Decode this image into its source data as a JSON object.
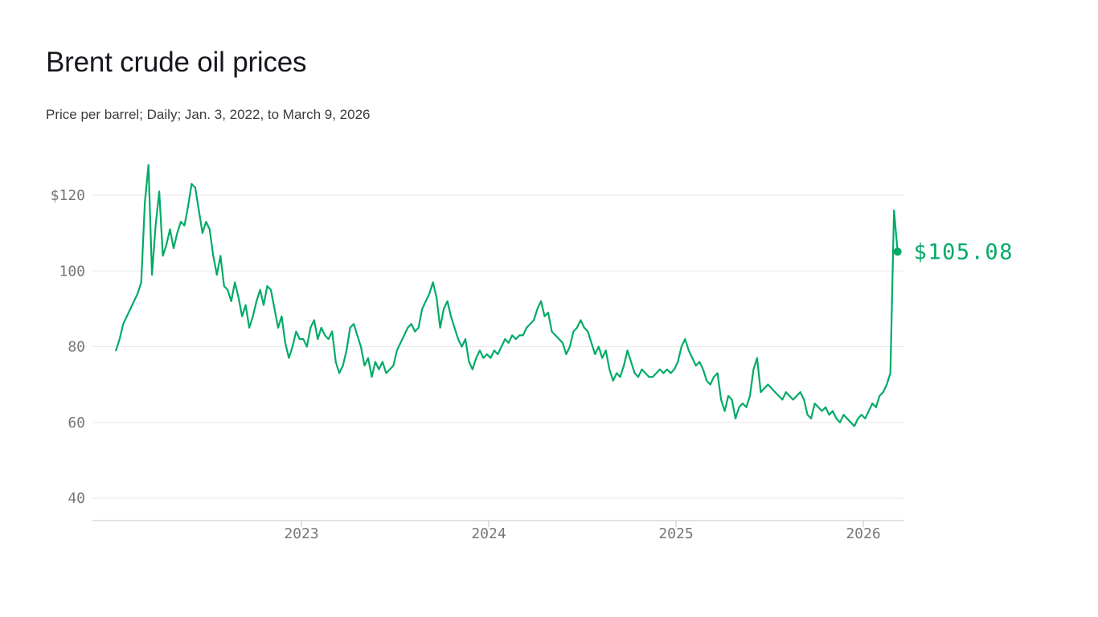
{
  "header": {
    "title": "Brent crude oil prices",
    "subtitle": "Price per barrel; Daily; Jan. 3, 2022, to March 9, 2026"
  },
  "chart_data": {
    "type": "line",
    "title": "Brent crude oil prices",
    "subtitle": "Price per barrel; Daily; Jan. 3, 2022, to March 9, 2026",
    "unit": "USD per barrel",
    "line_color": "#00ab66",
    "grid_color": "#e8e8e8",
    "axis_color": "#c6c6c6",
    "tick_label_color": "#767676",
    "legend_position": "none",
    "grid": true,
    "ylim": [
      40,
      130
    ],
    "xlim": [
      2022.0,
      2026.25
    ],
    "ylabel": "",
    "xlabel": "",
    "y_ticks": [
      {
        "value": 120,
        "label": "$120"
      },
      {
        "value": 100,
        "label": "100"
      },
      {
        "value": 80,
        "label": "80"
      },
      {
        "value": 60,
        "label": "60"
      },
      {
        "value": 40,
        "label": "40"
      }
    ],
    "x_ticks": [
      {
        "value": 2023,
        "label": "2023"
      },
      {
        "value": 2024,
        "label": "2024"
      },
      {
        "value": 2025,
        "label": "2025"
      },
      {
        "value": 2026,
        "label": "2026"
      }
    ],
    "end_label": "$105.08",
    "end_value": 105.08,
    "series": [
      {
        "name": "Brent crude price",
        "start": 2022.01,
        "step": 0.019231,
        "values": [
          79,
          82,
          86,
          88,
          90,
          92,
          94,
          97,
          118,
          128,
          99,
          112,
          121,
          104,
          107,
          111,
          106,
          110,
          113,
          112,
          117,
          123,
          122,
          116,
          110,
          113,
          111,
          104,
          99,
          104,
          96,
          95,
          92,
          97,
          93,
          88,
          91,
          85,
          88,
          92,
          95,
          91,
          96,
          95,
          90,
          85,
          88,
          81,
          77,
          80,
          84,
          82,
          82,
          80,
          85,
          87,
          82,
          85,
          83,
          82,
          84,
          76,
          73,
          75,
          79,
          85,
          86,
          83,
          80,
          75,
          77,
          72,
          76,
          74,
          76,
          73,
          74,
          75,
          79,
          81,
          83,
          85,
          86,
          84,
          85,
          90,
          92,
          94,
          97,
          93,
          85,
          90,
          92,
          88,
          85,
          82,
          80,
          82,
          76,
          74,
          77,
          79,
          77,
          78,
          77,
          79,
          78,
          80,
          82,
          81,
          83,
          82,
          83,
          83,
          85,
          86,
          87,
          90,
          92,
          88,
          89,
          84,
          83,
          82,
          81,
          78,
          80,
          84,
          85,
          87,
          85,
          84,
          81,
          78,
          80,
          77,
          79,
          74,
          71,
          73,
          72,
          75,
          79,
          76,
          73,
          72,
          74,
          73,
          72,
          72,
          73,
          74,
          73,
          74,
          73,
          74,
          76,
          80,
          82,
          79,
          77,
          75,
          76,
          74,
          71,
          70,
          72,
          73,
          66,
          63,
          67,
          66,
          61,
          64,
          65,
          64,
          67,
          74,
          77,
          68,
          69,
          70,
          69,
          68,
          67,
          66,
          68,
          67,
          66,
          67,
          68,
          66,
          62,
          61,
          65,
          64,
          63,
          64,
          62,
          63,
          61,
          60,
          62,
          61,
          60,
          59,
          61,
          62,
          61,
          63,
          65,
          64,
          67,
          68,
          70,
          73,
          116,
          105.08
        ]
      }
    ]
  }
}
